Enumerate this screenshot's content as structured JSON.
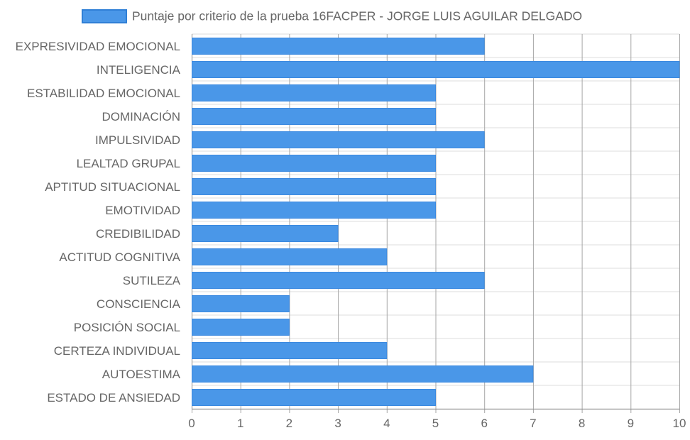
{
  "chart_data": {
    "type": "bar",
    "orientation": "horizontal",
    "categories": [
      "EXPRESIVIDAD EMOCIONAL",
      "INTELIGENCIA",
      "ESTABILIDAD EMOCIONAL",
      "DOMINACIÓN",
      "IMPULSIVIDAD",
      "LEALTAD GRUPAL",
      "APTITUD SITUACIONAL",
      "EMOTIVIDAD",
      "CREDIBILIDAD",
      "ACTITUD COGNITIVA",
      "SUTILEZA",
      "CONSCIENCIA",
      "POSICIÓN SOCIAL",
      "CERTEZA INDIVIDUAL",
      "AUTOESTIMA",
      "ESTADO DE ANSIEDAD"
    ],
    "series": [
      {
        "name": "Puntaje por criterio de la prueba 16FACPER - JORGE LUIS AGUILAR DELGADO",
        "values": [
          6,
          10,
          5,
          5,
          6,
          5,
          5,
          5,
          3,
          4,
          6,
          2,
          2,
          4,
          7,
          5
        ],
        "color": "#4a97e8"
      }
    ],
    "xlim": [
      0,
      10
    ],
    "xticks": [
      "0",
      "1",
      "2",
      "3",
      "4",
      "5",
      "6",
      "7",
      "8",
      "9",
      "10"
    ],
    "grid": true,
    "legend_position": "top-center",
    "colors": {
      "bar_fill": "#4a97e8",
      "bar_stroke": "#3b89e0",
      "grid": "#a6a6a6",
      "grid_horizontal": "#dedede",
      "axis_text": "#666666",
      "legend_text": "#666666"
    }
  }
}
